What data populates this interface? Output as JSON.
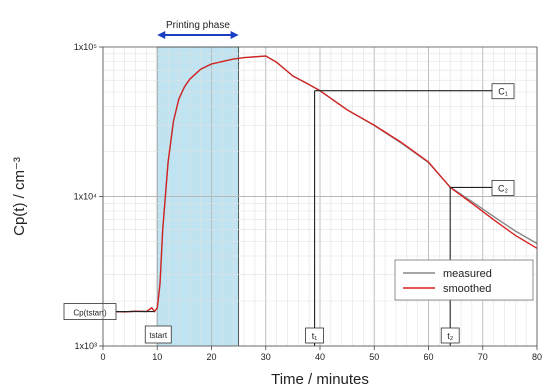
{
  "chart_data": {
    "type": "line",
    "xlabel": "Time / minutes",
    "ylabel": "Cp(t) / cm⁻³",
    "xlim": [
      0,
      80
    ],
    "ylim": [
      1000,
      100000
    ],
    "yscale": "log",
    "grid": true,
    "legend_position": "bottom-right",
    "x_ticks": [
      "0",
      "10",
      "20",
      "30",
      "40",
      "50",
      "60",
      "70",
      "80"
    ],
    "y_ticks": [
      "1x10³",
      "1x10⁴",
      "1x10⁵"
    ],
    "shaded_region": {
      "x": [
        10,
        25
      ],
      "label": "Printing phase",
      "color": "#bfe3f0"
    },
    "series": [
      {
        "name": "measured",
        "color": "#888888",
        "x": [
          0,
          2,
          4,
          6,
          8,
          9,
          9.5,
          10,
          10.5,
          11,
          12,
          13,
          14,
          15,
          16,
          18,
          20,
          22,
          24,
          26,
          28,
          30,
          32,
          35,
          38,
          40,
          45,
          50,
          55,
          60,
          64,
          68,
          72,
          76,
          80
        ],
        "y": [
          1700,
          1700,
          1690,
          1710,
          1700,
          1800,
          1700,
          1800,
          2600,
          6000,
          17000,
          32000,
          45000,
          54000,
          61000,
          71000,
          77000,
          80000,
          83000,
          85000,
          86000,
          87000,
          79000,
          64000,
          56000,
          51000,
          38000,
          30000,
          23000,
          17000,
          11500,
          9000,
          7000,
          5500,
          4500
        ]
      },
      {
        "name": "smoothed",
        "color": "#d62020",
        "x": [
          0,
          2,
          4,
          6,
          8,
          9,
          9.5,
          10,
          10.5,
          11,
          12,
          13,
          14,
          15,
          16,
          18,
          20,
          22,
          24,
          26,
          28,
          30,
          32,
          35,
          38,
          40,
          45,
          50,
          55,
          60,
          64,
          68,
          72,
          76,
          80
        ],
        "y": [
          1700,
          1700,
          1690,
          1710,
          1700,
          1800,
          1700,
          1800,
          2600,
          6000,
          17000,
          32000,
          45000,
          54000,
          61000,
          71000,
          77000,
          80000,
          83000,
          85000,
          86000,
          87000,
          79000,
          64000,
          56000,
          51000,
          38000,
          30000,
          23000,
          17000,
          11500,
          9000,
          7000,
          5500,
          4500
        ]
      }
    ],
    "annotations": [
      {
        "name": "C1",
        "label": "C₁",
        "x": 39,
        "y": 51000
      },
      {
        "name": "C2",
        "label": "C₂",
        "x": 64,
        "y": 11500
      },
      {
        "name": "t1",
        "label": "t₁",
        "x": 39
      },
      {
        "name": "t2",
        "label": "t₂",
        "x": 64
      },
      {
        "name": "tstart",
        "label": "tstart",
        "x": 10
      },
      {
        "name": "Cp-tstart",
        "label": "Cp(tstart)",
        "y": 1700
      }
    ]
  }
}
